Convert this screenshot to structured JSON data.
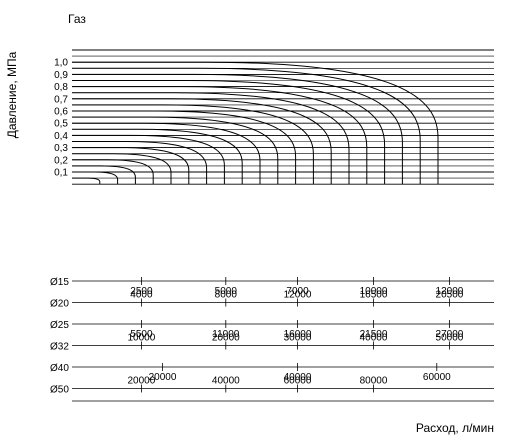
{
  "chart_data": {
    "type": "line",
    "title": "Газ",
    "ylabel": "Давление, МПа",
    "xlabel": "Расход, л/мин",
    "ylim": [
      0,
      1.1
    ],
    "y_ticks": [
      "0,1",
      "0,2",
      "0,3",
      "0,4",
      "0,5",
      "0,6",
      "0,7",
      "0,8",
      "0,9",
      "1,0"
    ],
    "curves": [
      {
        "x_max": 1
      },
      {
        "x_max": 2
      },
      {
        "x_max": 3
      },
      {
        "x_max": 4
      },
      {
        "x_max": 5
      },
      {
        "x_max": 6
      },
      {
        "x_max": 7
      },
      {
        "x_max": 8
      },
      {
        "x_max": 9
      },
      {
        "x_max": 10
      },
      {
        "x_max": 11
      },
      {
        "x_max": 12
      },
      {
        "x_max": 13
      },
      {
        "x_max": 14
      },
      {
        "x_max": 15
      },
      {
        "x_max": 16
      },
      {
        "x_max": 17
      },
      {
        "x_max": 18
      },
      {
        "x_max": 19
      },
      {
        "x_max": 20
      }
    ],
    "flow_scales": [
      {
        "label": "Ø15",
        "values": [
          "2500",
          "5000",
          "7000",
          "10000",
          "12000"
        ],
        "label_side": "below",
        "x_pct": [
          0.2,
          0.4,
          0.57,
          0.75,
          0.93
        ]
      },
      {
        "label": "Ø20",
        "values": [
          "4000",
          "8000",
          "12000",
          "16500",
          "20500"
        ],
        "label_side": "above",
        "x_pct": [
          0.2,
          0.4,
          0.57,
          0.75,
          0.93
        ]
      },
      {
        "label": "Ø25",
        "values": [
          "5500",
          "11000",
          "16000",
          "21500",
          "27000"
        ],
        "label_side": "below",
        "x_pct": [
          0.2,
          0.4,
          0.57,
          0.75,
          0.93
        ]
      },
      {
        "label": "Ø32",
        "values": [
          "10000",
          "20000",
          "30000",
          "40000",
          "50000"
        ],
        "label_side": "above",
        "x_pct": [
          0.2,
          0.4,
          0.57,
          0.75,
          0.93
        ]
      },
      {
        "label": "Ø40",
        "values": [
          "20000",
          "40000",
          "60000"
        ],
        "label_side": "below",
        "x_pct": [
          0.25,
          0.57,
          0.9
        ]
      },
      {
        "label": "Ø50",
        "values": [
          "20000",
          "40000",
          "60000",
          "80000"
        ],
        "label_side": "above",
        "x_pct": [
          0.2,
          0.4,
          0.57,
          0.75
        ]
      }
    ]
  }
}
